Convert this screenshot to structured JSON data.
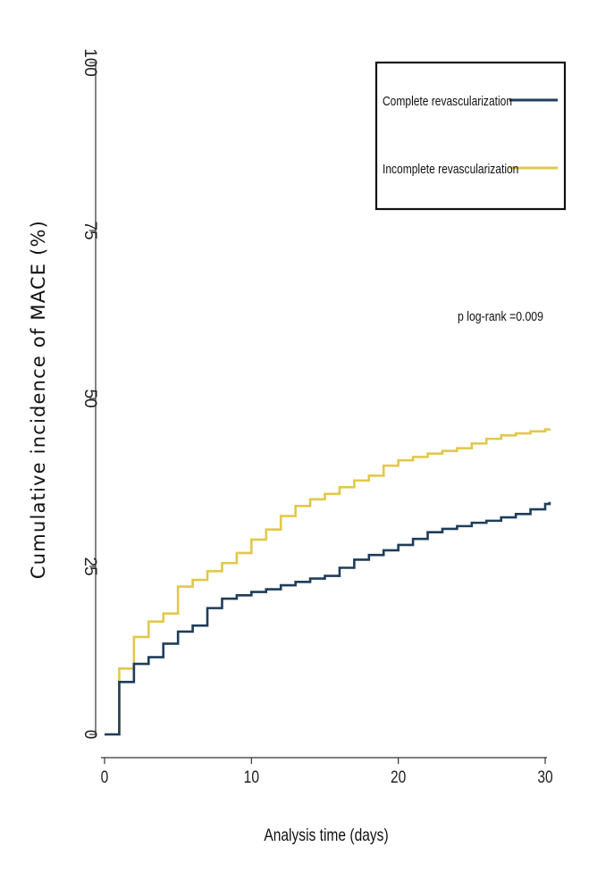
{
  "chart_data": {
    "type": "line",
    "step": true,
    "xlabel": "Analysis time (days)",
    "ylabel": "Cumulative incidence of MACE (%)",
    "xlim": [
      0,
      30.5
    ],
    "ylim": [
      0,
      100
    ],
    "xticks": [
      0,
      10,
      20,
      30
    ],
    "yticks": [
      0,
      25,
      50,
      75,
      100
    ],
    "grid": false,
    "legend_position": "top-right",
    "annotation": "p log-rank =0.009",
    "series": [
      {
        "name": "Complete revascularization",
        "color": "#1f3d5a",
        "x": [
          0,
          1,
          2,
          3,
          4,
          5,
          6,
          7,
          8,
          9,
          10,
          11,
          12,
          13,
          14,
          15,
          16,
          17,
          18,
          19,
          20,
          21,
          22,
          23,
          24,
          25,
          26,
          27,
          28,
          29,
          30,
          30.3
        ],
        "y": [
          0,
          7.8,
          10.5,
          11.5,
          13.5,
          15.3,
          16.2,
          18.8,
          20.2,
          20.7,
          21.2,
          21.6,
          22.2,
          22.7,
          23.2,
          23.6,
          24.8,
          26.0,
          26.7,
          27.4,
          28.2,
          29.1,
          30.1,
          30.6,
          31.0,
          31.5,
          31.8,
          32.3,
          32.8,
          33.5,
          34.3,
          34.6
        ]
      },
      {
        "name": "Incomplete revascularization",
        "color": "#e2c84a",
        "x": [
          0,
          1,
          2,
          3,
          4,
          5,
          6,
          7,
          8,
          9,
          10,
          11,
          12,
          13,
          14,
          15,
          16,
          17,
          18,
          19,
          20,
          21,
          22,
          23,
          24,
          25,
          26,
          27,
          28,
          29,
          30,
          30.3
        ],
        "y": [
          0,
          9.8,
          14.5,
          16.8,
          18.0,
          22.0,
          23.0,
          24.3,
          25.5,
          27.0,
          29.0,
          30.5,
          32.5,
          34.0,
          35.0,
          35.8,
          36.8,
          37.8,
          38.5,
          40.0,
          40.8,
          41.3,
          41.8,
          42.2,
          42.6,
          43.3,
          44.0,
          44.5,
          44.8,
          45.1,
          45.4,
          45.5
        ]
      }
    ]
  }
}
